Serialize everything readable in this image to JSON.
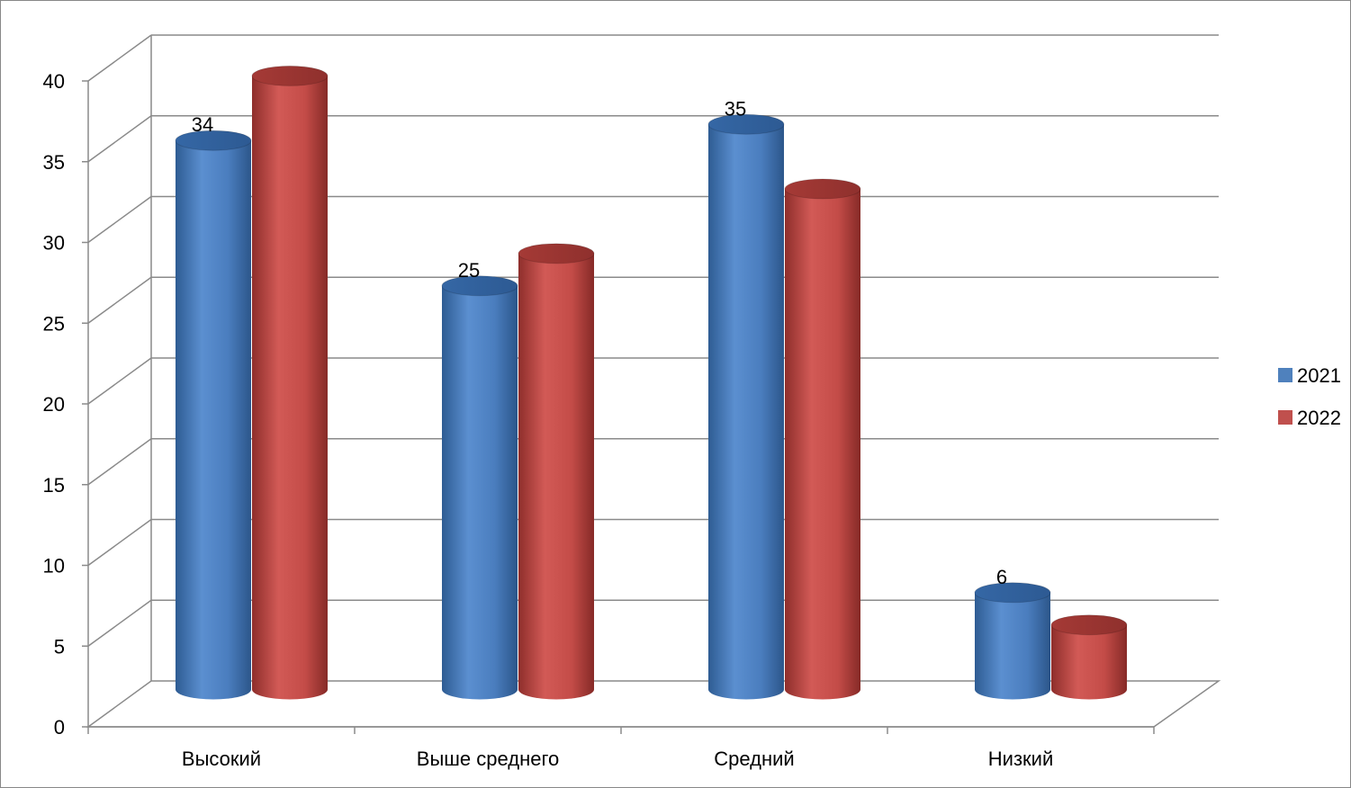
{
  "chart_data": {
    "type": "bar",
    "style": "3d-cylinder",
    "categories": [
      "Высокий",
      "Выше среднего",
      "Средний",
      "Низкий"
    ],
    "series": [
      {
        "name": "2021",
        "color": "#4F81BD",
        "values": [
          34,
          25,
          35,
          6
        ],
        "data_labels": [
          "34",
          "25",
          "35",
          "6"
        ]
      },
      {
        "name": "2022",
        "color": "#C0504D",
        "values": [
          38,
          27,
          31,
          4
        ]
      }
    ],
    "y_ticks": [
      "0",
      "5",
      "10",
      "15",
      "20",
      "25",
      "30",
      "35",
      "40"
    ],
    "ylim": [
      0,
      40
    ],
    "grid": true,
    "legend_position": "right"
  }
}
